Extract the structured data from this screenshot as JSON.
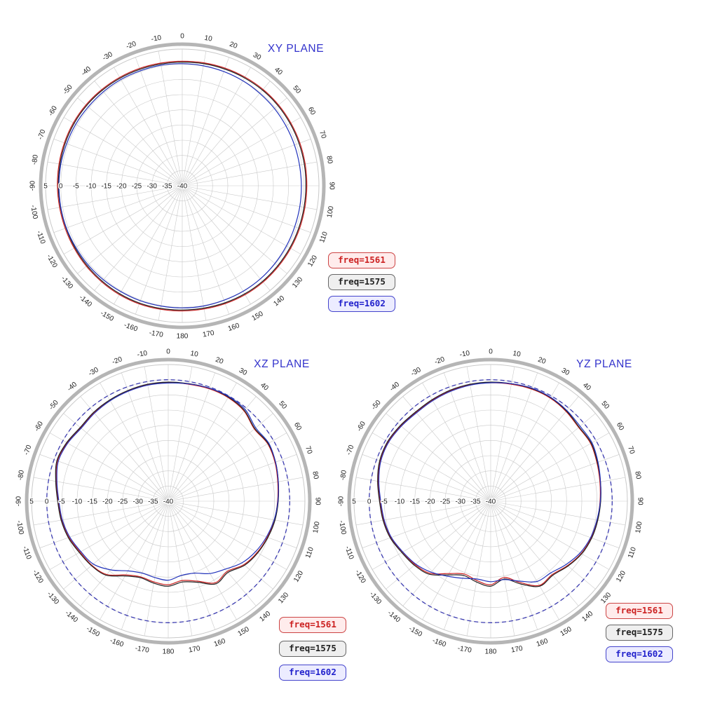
{
  "style": {
    "background": "#ffffff",
    "grid_color": "#c9c9c9",
    "ring_color": "#b5b5b5",
    "axis_text_color": "#222222",
    "title_color": "#3333cc",
    "reference_color": "#3b3bb0"
  },
  "legend": {
    "items": [
      {
        "label": "freq=1561",
        "text_color": "#cc2222",
        "bg_color": "#ffecec",
        "border_color": "#cc4444"
      },
      {
        "label": "freq=1575",
        "text_color": "#222222",
        "bg_color": "#efefef",
        "border_color": "#666666"
      },
      {
        "label": "freq=1602",
        "text_color": "#2222cc",
        "bg_color": "#ececff",
        "border_color": "#4444cc"
      }
    ]
  },
  "chart_data": [
    {
      "type": "line",
      "coordinate": "polar",
      "title": "XY PLANE",
      "angle_unit": "deg",
      "angle_tick_step": 10,
      "radial_range": [
        -40,
        5
      ],
      "radial_ticks": [
        5,
        0,
        -5,
        -10,
        -15,
        -20,
        -25,
        -30,
        -35,
        -40
      ],
      "zero_reference_circle": false,
      "grid": true,
      "legend_position": "outside-right",
      "angles_deg": [
        -180,
        -170,
        -160,
        -150,
        -140,
        -130,
        -120,
        -110,
        -100,
        -90,
        -80,
        -70,
        -60,
        -50,
        -40,
        -30,
        -20,
        -10,
        0,
        10,
        20,
        30,
        40,
        50,
        60,
        70,
        80,
        90,
        100,
        110,
        120,
        130,
        140,
        150,
        160,
        170,
        180
      ],
      "series": [
        {
          "name": "freq=1561",
          "color": "#cc2222",
          "values": [
            1.2,
            1.3,
            1.4,
            1.4,
            1.3,
            1.2,
            1.1,
            1.0,
            1.0,
            1.1,
            1.2,
            1.3,
            1.4,
            1.4,
            1.3,
            1.2,
            1.1,
            1.0,
            1.0,
            1.1,
            1.2,
            1.3,
            1.4,
            1.4,
            1.3,
            1.2,
            1.1,
            1.0,
            1.0,
            1.1,
            1.2,
            1.3,
            1.4,
            1.4,
            1.3,
            1.2,
            1.2
          ]
        },
        {
          "name": "freq=1575",
          "color": "#222222",
          "values": [
            0.9,
            1.0,
            1.1,
            1.1,
            1.0,
            0.9,
            0.8,
            0.7,
            0.7,
            0.8,
            0.9,
            1.0,
            1.1,
            1.1,
            1.0,
            0.9,
            0.8,
            0.7,
            0.7,
            0.8,
            0.9,
            1.0,
            1.1,
            1.1,
            1.0,
            0.9,
            0.8,
            0.7,
            0.7,
            0.8,
            0.9,
            1.0,
            1.1,
            1.1,
            1.0,
            0.9,
            0.9
          ]
        },
        {
          "name": "freq=1602",
          "color": "#2233bb",
          "values": [
            0.2,
            0.2,
            0.3,
            0.3,
            0.4,
            0.5,
            0.5,
            0.6,
            0.6,
            0.6,
            0.6,
            0.5,
            0.5,
            0.4,
            0.4,
            0.4,
            0.3,
            0.3,
            0.2,
            0.1,
            0.0,
            -0.1,
            -0.3,
            -0.4,
            -0.6,
            -0.7,
            -0.8,
            -0.8,
            -0.7,
            -0.6,
            -0.4,
            -0.2,
            0.0,
            0.1,
            0.1,
            0.2,
            0.2
          ]
        }
      ]
    },
    {
      "type": "line",
      "coordinate": "polar",
      "title": "XZ PLANE",
      "angle_unit": "deg",
      "angle_tick_step": 10,
      "radial_range": [
        -40,
        5
      ],
      "radial_ticks": [
        5,
        0,
        -5,
        -10,
        -15,
        -20,
        -25,
        -30,
        -35,
        -40
      ],
      "zero_reference_circle": true,
      "grid": true,
      "legend_position": "outside-right-bottom",
      "angles_deg": [
        -180,
        -170,
        -160,
        -150,
        -140,
        -130,
        -120,
        -110,
        -100,
        -90,
        -80,
        -70,
        -60,
        -50,
        -40,
        -30,
        -20,
        -10,
        0,
        10,
        20,
        30,
        40,
        50,
        60,
        70,
        80,
        90,
        100,
        110,
        120,
        130,
        140,
        150,
        160,
        170,
        180
      ],
      "series": [
        {
          "name": "freq=1561",
          "color": "#cc2222",
          "values": [
            -12.5,
            -13,
            -13.5,
            -12,
            -8.5,
            -7.2,
            -6.5,
            -5.2,
            -4.4,
            -3.8,
            -2.6,
            -1.2,
            -1.6,
            -2.4,
            -2,
            -1.7,
            -1.4,
            -1.1,
            -1,
            -0.9,
            -0.6,
            -0.6,
            -1.2,
            -3,
            -2.2,
            -2.6,
            -3.4,
            -4,
            -4.5,
            -5.3,
            -6.2,
            -7.5,
            -9.8,
            -9,
            -12,
            -13.5,
            -12.5
          ]
        },
        {
          "name": "freq=1575",
          "color": "#222222",
          "values": [
            -12,
            -12.6,
            -13.2,
            -11.6,
            -8.2,
            -7,
            -6.2,
            -5,
            -4.2,
            -3.6,
            -2.4,
            -1,
            -1.4,
            -2.2,
            -1.8,
            -1.5,
            -1.2,
            -0.9,
            -0.8,
            -0.7,
            -0.4,
            -0.4,
            -1,
            -2.8,
            -2,
            -2.4,
            -3.2,
            -3.8,
            -4.3,
            -5.1,
            -6,
            -7.2,
            -9.4,
            -8.6,
            -11.6,
            -13,
            -12
          ]
        },
        {
          "name": "freq=1602",
          "color": "#2233bb",
          "values": [
            -14,
            -14.5,
            -14.8,
            -13.5,
            -10.5,
            -7.8,
            -6.8,
            -5.5,
            -4.6,
            -4,
            -2.8,
            -1.5,
            -1.8,
            -2.6,
            -2.2,
            -1.8,
            -1.5,
            -1.2,
            -1.1,
            -0.8,
            -0.4,
            -0.2,
            -0.6,
            -2.4,
            -1.8,
            -2.4,
            -3.2,
            -3.9,
            -4.6,
            -5.6,
            -6.8,
            -8.4,
            -10.8,
            -12.5,
            -14.8,
            -15.2,
            -14
          ]
        }
      ]
    },
    {
      "type": "line",
      "coordinate": "polar",
      "title": "YZ PLANE",
      "angle_unit": "deg",
      "angle_tick_step": 10,
      "radial_range": [
        -40,
        5
      ],
      "radial_ticks": [
        5,
        0,
        -5,
        -10,
        -15,
        -20,
        -25,
        -30,
        -35,
        -40
      ],
      "zero_reference_circle": true,
      "grid": true,
      "legend_position": "outside-right-bottom",
      "angles_deg": [
        -180,
        -170,
        -160,
        -150,
        -140,
        -130,
        -120,
        -110,
        -100,
        -90,
        -80,
        -70,
        -60,
        -50,
        -40,
        -30,
        -20,
        -10,
        0,
        10,
        20,
        30,
        40,
        50,
        60,
        70,
        80,
        90,
        100,
        110,
        120,
        130,
        140,
        150,
        160,
        170,
        180
      ],
      "series": [
        {
          "name": "freq=1561",
          "color": "#cc2222",
          "values": [
            -12.5,
            -13.5,
            -14.5,
            -12.5,
            -9,
            -7.5,
            -6.5,
            -5,
            -4.2,
            -3.6,
            -2.4,
            -1.3,
            -1,
            -1.4,
            -1.8,
            -1.6,
            -1.3,
            -1.1,
            -1,
            -0.9,
            -0.7,
            -0.8,
            -1.4,
            -2.2,
            -2,
            -2.8,
            -3.5,
            -4,
            -4.4,
            -4.8,
            -5.6,
            -7,
            -8.5,
            -8,
            -11.5,
            -14.5,
            -12.5
          ]
        },
        {
          "name": "freq=1575",
          "color": "#222222",
          "values": [
            -12,
            -13,
            -14,
            -12,
            -8.6,
            -7.2,
            -6.2,
            -4.8,
            -4,
            -3.4,
            -2.2,
            -1.1,
            -0.8,
            -1.2,
            -1.6,
            -1.4,
            -1.1,
            -0.9,
            -0.8,
            -0.7,
            -0.5,
            -0.6,
            -1.2,
            -2,
            -1.8,
            -2.6,
            -3.3,
            -3.8,
            -4.2,
            -4.6,
            -5.4,
            -6.8,
            -8.2,
            -7.7,
            -11,
            -14,
            -12
          ]
        },
        {
          "name": "freq=1602",
          "color": "#2233bb",
          "values": [
            -13.5,
            -14,
            -13,
            -11.5,
            -9.5,
            -7.8,
            -6.6,
            -5.2,
            -4.4,
            -3.8,
            -2.6,
            -1.5,
            -1.2,
            -1.6,
            -2,
            -1.8,
            -1.5,
            -1.2,
            -1,
            -0.7,
            -0.4,
            -0.5,
            -1,
            -1.6,
            -1.5,
            -2.4,
            -3.3,
            -3.9,
            -4.5,
            -5,
            -6,
            -7.6,
            -9.2,
            -9.5,
            -12,
            -13.8,
            -13.5
          ]
        }
      ]
    }
  ]
}
